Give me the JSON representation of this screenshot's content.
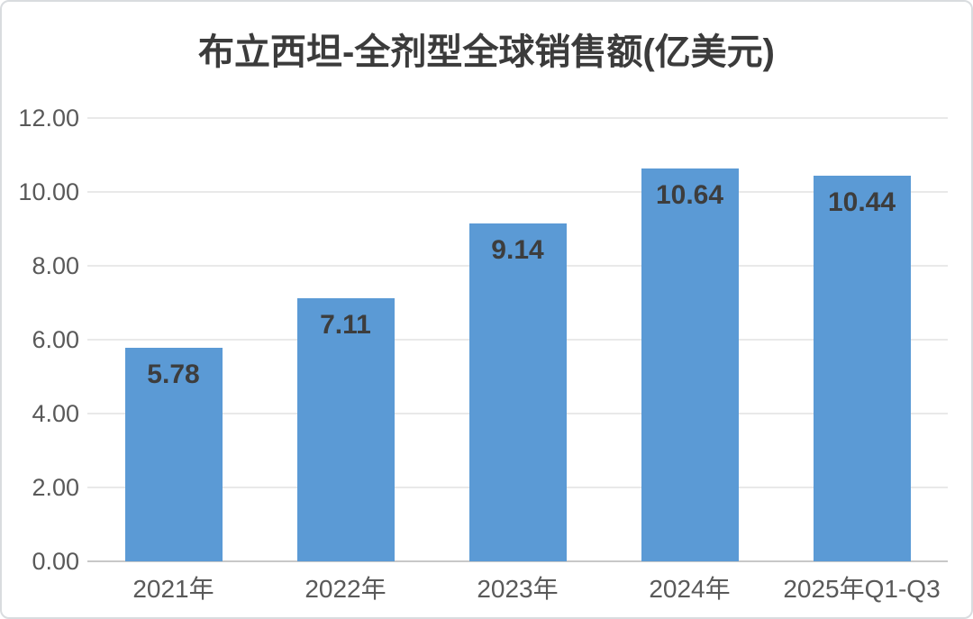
{
  "chart_data": {
    "type": "bar",
    "title": "布立西坦-全剂型全球销售额(亿美元)",
    "categories": [
      "2021年",
      "2022年",
      "2023年",
      "2024年",
      "2025年Q1-Q3"
    ],
    "values": [
      5.78,
      7.11,
      9.14,
      10.64,
      10.44
    ],
    "value_labels": [
      "5.78",
      "7.11",
      "9.14",
      "10.64",
      "10.44"
    ],
    "xlabel": "",
    "ylabel": "",
    "ylim": [
      0,
      12
    ],
    "ytick_step": 2,
    "ytick_labels": [
      "0.00",
      "2.00",
      "4.00",
      "6.00",
      "8.00",
      "10.00",
      "12.00"
    ],
    "grid": true,
    "legend": "none",
    "colors": {
      "bar": "#5b9ad5",
      "title_text": "#3b3b3b",
      "value_label_text": "#3d3d3d",
      "axis_text": "#595959",
      "gridline": "#e9e9e9",
      "axis_line": "#c8c8c8",
      "background": "#ffffff",
      "frame_border": "#d9dcdf"
    }
  }
}
